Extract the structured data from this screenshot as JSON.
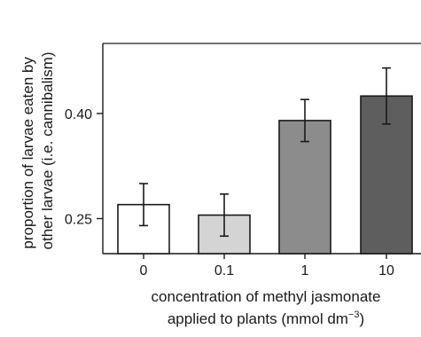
{
  "chart_data": {
    "type": "bar",
    "categories": [
      "0",
      "0.1",
      "1",
      "10"
    ],
    "values": [
      0.27,
      0.255,
      0.39,
      0.425
    ],
    "errors": [
      0.03,
      0.03,
      0.03,
      0.04
    ],
    "bar_colors": [
      "#ffffff",
      "#d4d4d4",
      "#8c8c8c",
      "#5e5e5e"
    ],
    "yticks": [
      0.25,
      0.4
    ],
    "ytick_labels": [
      "0.25",
      "0.40"
    ],
    "ylim": [
      0.2,
      0.5
    ],
    "xlabel_lines": [
      "concentration of methyl jasmonate",
      "applied to plants (mmol dm",
      "−3",
      ")"
    ],
    "ylabel_lines": [
      "proportion of larvae eaten by",
      "other larvae (i.e. cannibalism)"
    ],
    "grid": false
  }
}
